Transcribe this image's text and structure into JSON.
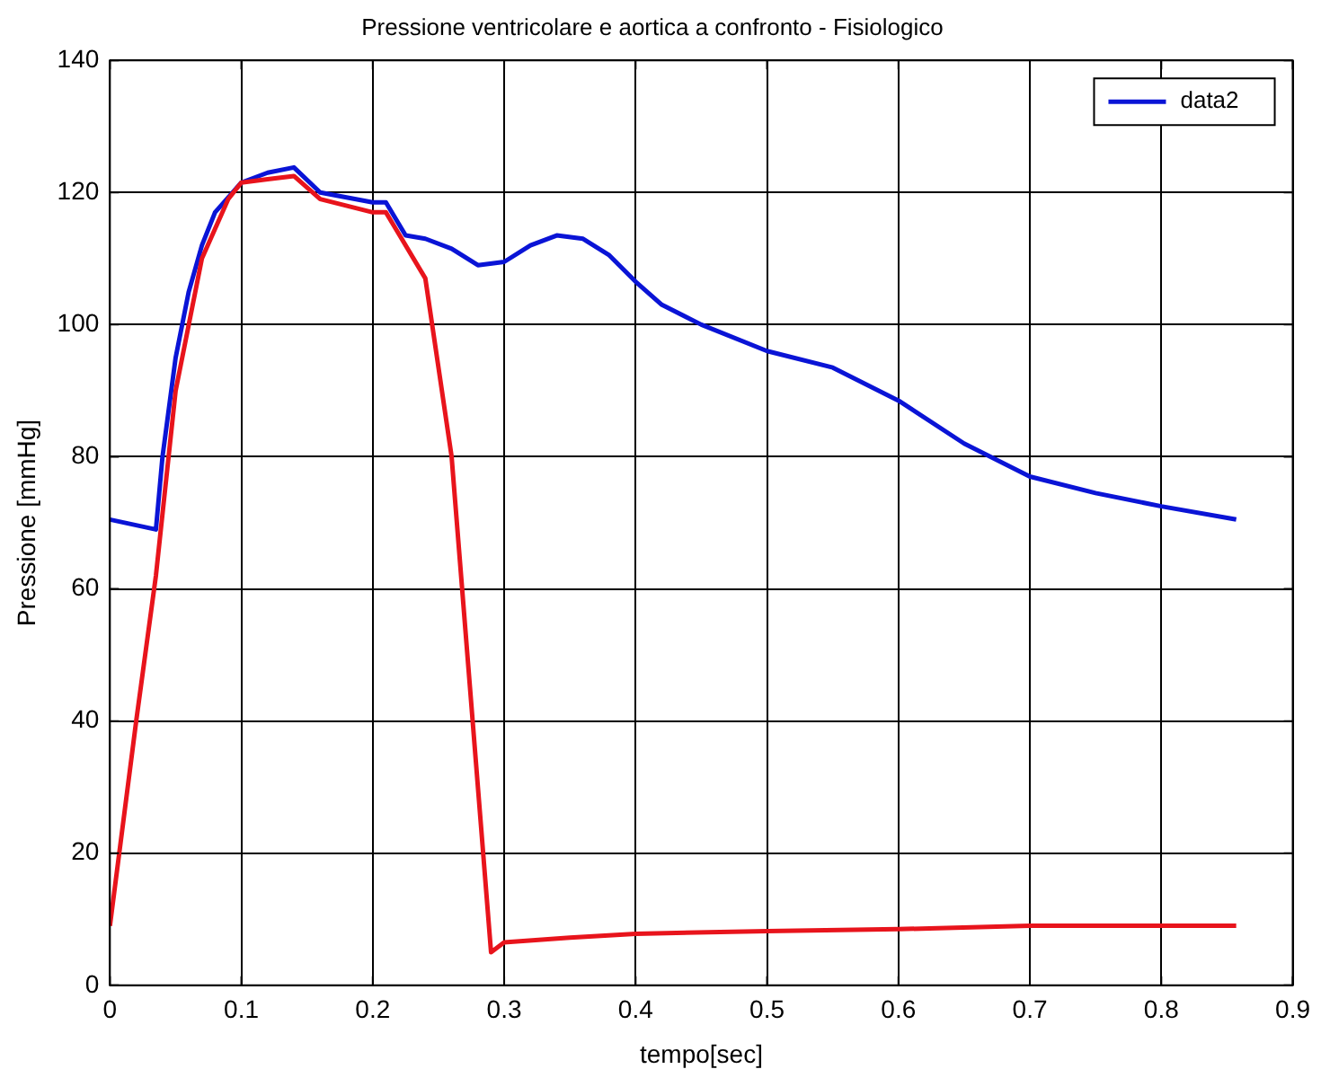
{
  "chart_data": {
    "type": "line",
    "title": "Pressione ventricolare e aortica a confronto - Fisiologico",
    "xlabel": "tempo[sec]",
    "ylabel": "Pressione [mmHg]",
    "xlim": [
      0,
      0.9
    ],
    "xticks": [
      0,
      0.1,
      0.2,
      0.3,
      0.4,
      0.5,
      0.6,
      0.7,
      0.8,
      0.9
    ],
    "ylim": [
      0,
      140
    ],
    "yticks": [
      0,
      20,
      40,
      60,
      80,
      100,
      120,
      140
    ],
    "grid": true,
    "legend": "top right",
    "marker": "none",
    "line_style": "solid",
    "series": [
      {
        "color": "#e8141c",
        "x": [
          0,
          0.02,
          0.035,
          0.05,
          0.07,
          0.09,
          0.1,
          0.12,
          0.14,
          0.16,
          0.2,
          0.21,
          0.24,
          0.26,
          0.29,
          0.3,
          0.35,
          0.4,
          0.5,
          0.6,
          0.7,
          0.857
        ],
        "values": [
          9,
          40,
          62,
          90,
          110,
          119,
          121.5,
          122,
          122.5,
          119,
          117,
          117,
          107,
          80,
          5,
          6.5,
          7.2,
          7.8,
          8.2,
          8.5,
          9,
          9
        ]
      },
      {
        "name": "data2",
        "color": "#0a14d6",
        "x": [
          0,
          0.035,
          0.04,
          0.05,
          0.06,
          0.07,
          0.08,
          0.1,
          0.12,
          0.14,
          0.16,
          0.2,
          0.21,
          0.225,
          0.24,
          0.26,
          0.28,
          0.3,
          0.32,
          0.34,
          0.36,
          0.38,
          0.4,
          0.42,
          0.45,
          0.5,
          0.55,
          0.6,
          0.65,
          0.7,
          0.75,
          0.8,
          0.857
        ],
        "values": [
          70.5,
          69,
          80,
          95,
          105,
          112,
          117,
          121.5,
          123,
          123.8,
          120,
          118.5,
          118.5,
          113.5,
          113,
          111.5,
          109,
          109.5,
          112,
          113.5,
          113,
          110.5,
          106.5,
          103,
          100,
          96,
          93.5,
          88.5,
          82,
          77,
          74.5,
          72.5,
          70.5
        ]
      }
    ]
  }
}
